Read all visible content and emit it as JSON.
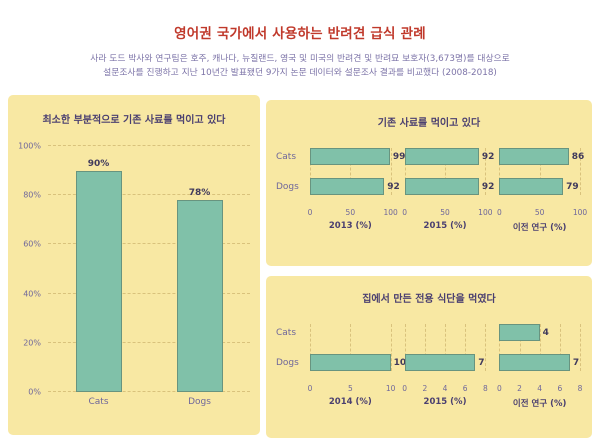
{
  "header": {
    "title": "영어권 국가에서 사용하는 반려견 급식 관례",
    "subtitle_lines": [
      "사라 도드 박사와 연구팀은 호주, 캐나다, 뉴질랜드, 영국 및 미국의 반려견 및 반려묘 보호자(3,673명)를 대상으로",
      "설문조사를 진행하고 지난 10년간 발표됐던 9가지 논문 데이터와 설문조사 결과를 비교했다 (2008-2018)"
    ]
  },
  "colors": {
    "panel_bg": "#f8e8a3",
    "bar_fill": "#80c1a9",
    "bar_border": "#68947f",
    "title_red": "#c0392b",
    "subtitle_purple": "#7d74a8",
    "label_purple": "#6f679b",
    "chart_title_purple": "#4a3f70",
    "grid_line": "#d9c27c",
    "value_label": "#403a5c"
  },
  "chart_data": [
    {
      "type": "bar",
      "title": "최소한 부분적으로 기존 사료를 먹이고 있다",
      "categories": [
        "Cats",
        "Dogs"
      ],
      "values": [
        90,
        78
      ],
      "value_labels": [
        "90%",
        "78%"
      ],
      "ylim": [
        0,
        100
      ],
      "yticks": [
        "0%",
        "20%",
        "40%",
        "60%",
        "80%",
        "100%"
      ],
      "grid": "dashed-horizontal"
    },
    {
      "type": "bar-horizontal-small-multiples",
      "title": "기존 사료를 먹이고 있다",
      "categories": [
        "Cats",
        "Dogs"
      ],
      "columns": [
        {
          "label": "2013 (%)",
          "ticks": [
            0,
            50,
            100
          ],
          "max": 100,
          "values": [
            99,
            92
          ]
        },
        {
          "label": "2015 (%)",
          "ticks": [
            0,
            50,
            100
          ],
          "max": 100,
          "values": [
            92,
            92
          ]
        },
        {
          "label": "이전 연구 (%)",
          "ticks": [
            0,
            50,
            100
          ],
          "max": 100,
          "values": [
            86,
            79
          ]
        }
      ]
    },
    {
      "type": "bar-horizontal-small-multiples",
      "title": "집에서 만든 전용 식단을 먹였다",
      "categories": [
        "Cats",
        "Dogs"
      ],
      "columns": [
        {
          "label": "2014 (%)",
          "ticks": [
            0,
            5,
            10
          ],
          "max": 10,
          "values": [
            null,
            10
          ]
        },
        {
          "label": "2015 (%)",
          "ticks": [
            0,
            2,
            4,
            6,
            8
          ],
          "max": 8,
          "values": [
            null,
            7
          ]
        },
        {
          "label": "이전 연구 (%)",
          "ticks": [
            0,
            2,
            4,
            6,
            8
          ],
          "max": 8,
          "values": [
            4,
            7
          ]
        }
      ]
    }
  ]
}
